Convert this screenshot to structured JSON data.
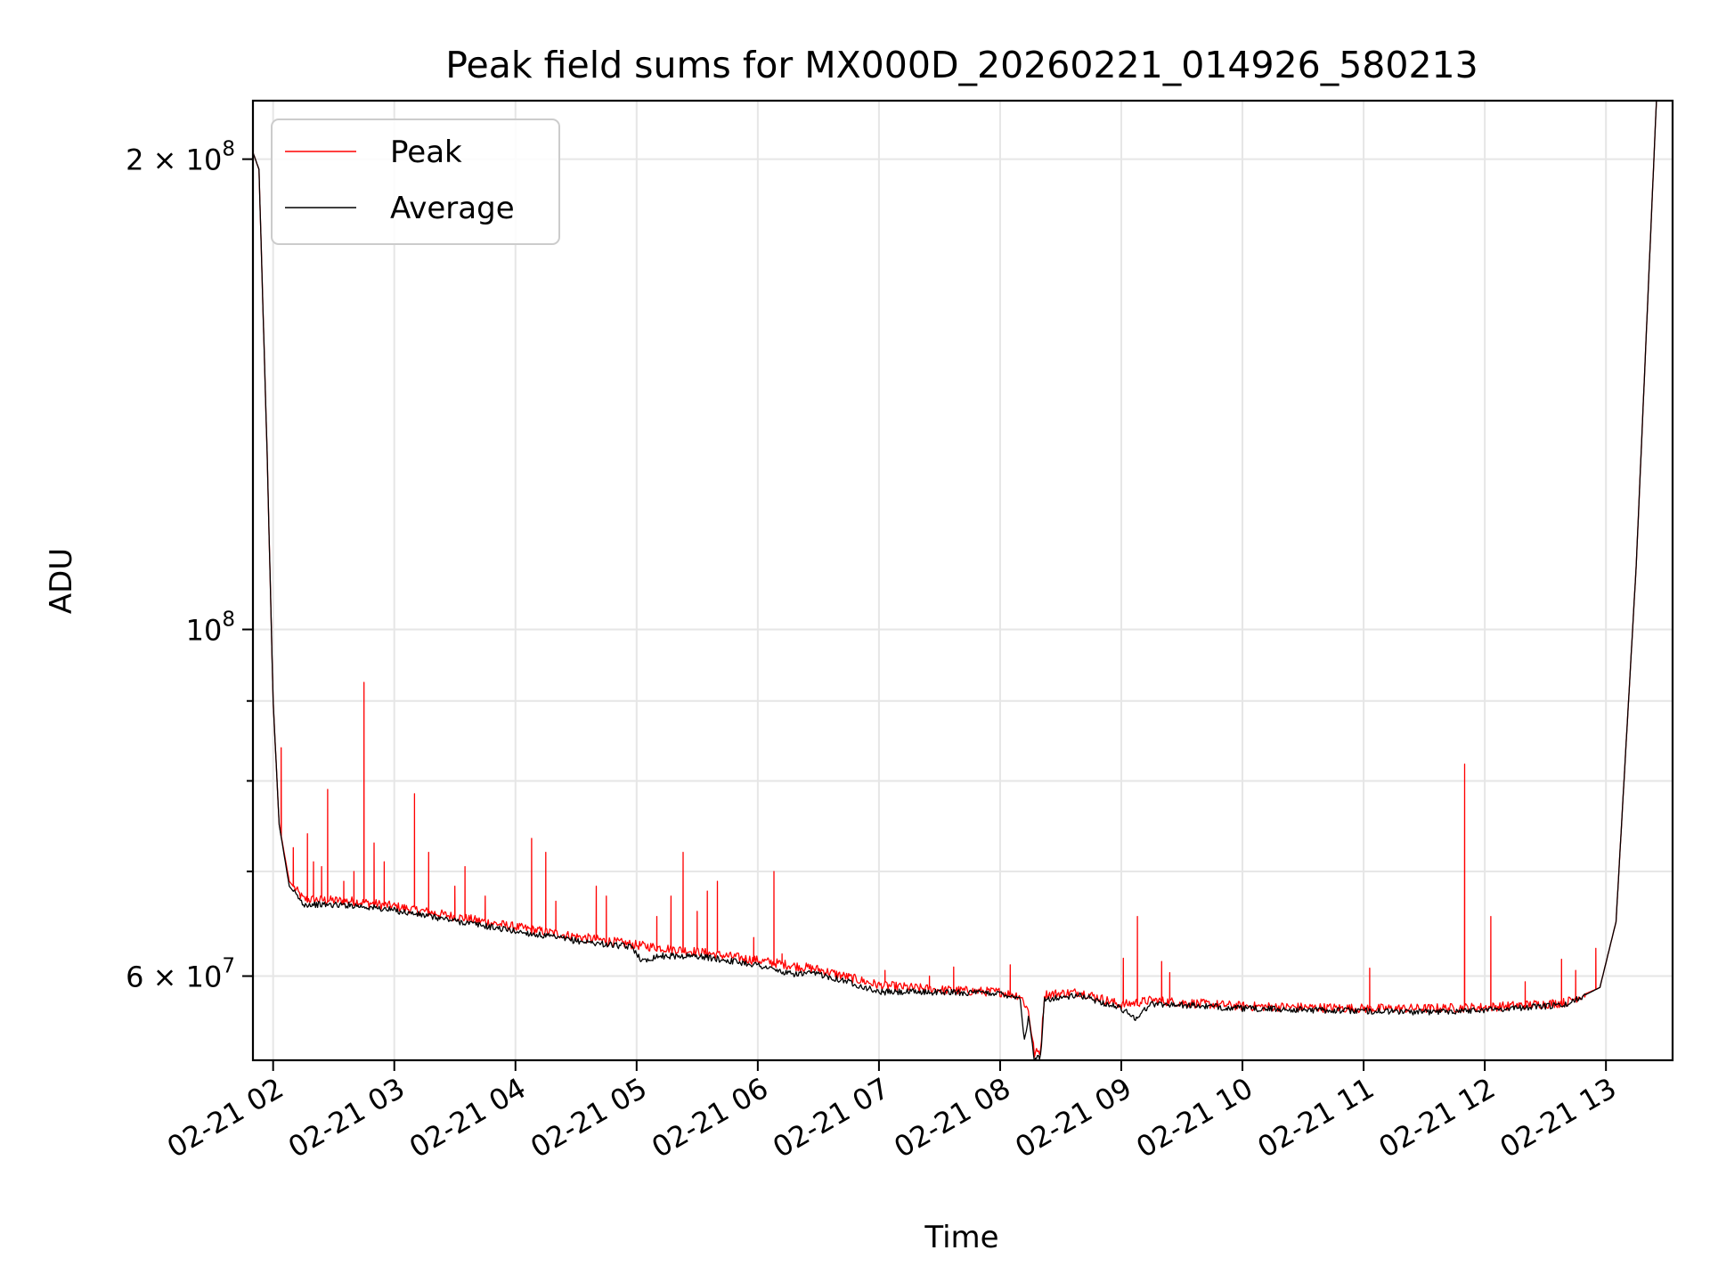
{
  "chart_data": {
    "type": "line",
    "title": "Peak field sums for MX000D_20260221_014926_580213",
    "xlabel": "Time",
    "ylabel": "ADU",
    "y_scale": "log",
    "ylim": [
      53000000,
      218000000
    ],
    "xlim": [
      "02-21 01:50",
      "02-21 13:33"
    ],
    "grid": true,
    "legend_position": "upper-left",
    "x_ticks": [
      {
        "time": "02-21 02:00",
        "label": "02-21 02"
      },
      {
        "time": "02-21 03:00",
        "label": "02-21 03"
      },
      {
        "time": "02-21 04:00",
        "label": "02-21 04"
      },
      {
        "time": "02-21 05:00",
        "label": "02-21 05"
      },
      {
        "time": "02-21 06:00",
        "label": "02-21 06"
      },
      {
        "time": "02-21 07:00",
        "label": "02-21 07"
      },
      {
        "time": "02-21 08:00",
        "label": "02-21 08"
      },
      {
        "time": "02-21 09:00",
        "label": "02-21 09"
      },
      {
        "time": "02-21 10:00",
        "label": "02-21 10"
      },
      {
        "time": "02-21 11:00",
        "label": "02-21 11"
      },
      {
        "time": "02-21 12:00",
        "label": "02-21 12"
      },
      {
        "time": "02-21 13:00",
        "label": "02-21 13"
      }
    ],
    "y_major_ticks": [
      {
        "value": 60000000,
        "base": "6 × 10",
        "exp": "7"
      },
      {
        "value": 100000000,
        "base": "10",
        "exp": "8"
      },
      {
        "value": 200000000,
        "base": "2 × 10",
        "exp": "8"
      }
    ],
    "y_minor_ticks": [
      70000000,
      80000000,
      90000000
    ],
    "series": [
      {
        "name": "Peak",
        "color": "#ff0000",
        "baseline": [
          [
            "02-21 01:50",
            202000000
          ],
          [
            "02-21 01:53",
            197000000
          ],
          [
            "02-21 01:57",
            130000000
          ],
          [
            "02-21 02:00",
            90000000
          ],
          [
            "02-21 02:03",
            75000000
          ],
          [
            "02-21 02:08",
            69000000
          ],
          [
            "02-21 02:15",
            67200000
          ],
          [
            "02-21 02:40",
            67000000
          ],
          [
            "02-21 03:00",
            66500000
          ],
          [
            "02-21 03:30",
            65500000
          ],
          [
            "02-21 04:00",
            64500000
          ],
          [
            "02-21 04:30",
            63600000
          ],
          [
            "02-21 05:00",
            62800000
          ],
          [
            "02-21 05:30",
            62200000
          ],
          [
            "02-21 06:00",
            61400000
          ],
          [
            "02-21 06:30",
            60600000
          ],
          [
            "02-21 07:00",
            59200000
          ],
          [
            "02-21 07:30",
            58800000
          ],
          [
            "02-21 08:00",
            58600000
          ],
          [
            "02-21 08:10",
            58300000
          ],
          [
            "02-21 08:14",
            57000000
          ],
          [
            "02-21 08:17",
            53500000
          ],
          [
            "02-21 08:20",
            53800000
          ],
          [
            "02-21 08:22",
            58400000
          ],
          [
            "02-21 08:40",
            58600000
          ],
          [
            "02-21 09:00",
            57500000
          ],
          [
            "02-21 09:15",
            57900000
          ],
          [
            "02-21 09:30",
            57700000
          ],
          [
            "02-21 10:00",
            57400000
          ],
          [
            "02-21 10:30",
            57300000
          ],
          [
            "02-21 11:00",
            57200000
          ],
          [
            "02-21 11:30",
            57200000
          ],
          [
            "02-21 12:00",
            57300000
          ],
          [
            "02-21 12:40",
            57700000
          ],
          [
            "02-21 12:57",
            59000000
          ],
          [
            "02-21 13:05",
            65000000
          ],
          [
            "02-21 13:15",
            110000000
          ],
          [
            "02-21 13:25",
            218000000
          ]
        ],
        "spikes": [
          [
            "02-21 02:04",
            84000000
          ],
          [
            "02-21 02:10",
            72500000
          ],
          [
            "02-21 02:17",
            74000000
          ],
          [
            "02-21 02:20",
            71000000
          ],
          [
            "02-21 02:24",
            70500000
          ],
          [
            "02-21 02:27",
            79000000
          ],
          [
            "02-21 02:35",
            69000000
          ],
          [
            "02-21 02:40",
            70000000
          ],
          [
            "02-21 02:45",
            92500000
          ],
          [
            "02-21 02:50",
            73000000
          ],
          [
            "02-21 02:55",
            71000000
          ],
          [
            "02-21 03:10",
            78500000
          ],
          [
            "02-21 03:17",
            72000000
          ],
          [
            "02-21 03:30",
            68500000
          ],
          [
            "02-21 03:35",
            70500000
          ],
          [
            "02-21 03:45",
            67500000
          ],
          [
            "02-21 04:08",
            73500000
          ],
          [
            "02-21 04:15",
            72000000
          ],
          [
            "02-21 04:20",
            67000000
          ],
          [
            "02-21 04:40",
            68500000
          ],
          [
            "02-21 04:45",
            67500000
          ],
          [
            "02-21 05:10",
            65500000
          ],
          [
            "02-21 05:17",
            67500000
          ],
          [
            "02-21 05:23",
            72000000
          ],
          [
            "02-21 05:30",
            66000000
          ],
          [
            "02-21 05:35",
            68000000
          ],
          [
            "02-21 05:40",
            69000000
          ],
          [
            "02-21 05:58",
            63500000
          ],
          [
            "02-21 06:08",
            70000000
          ],
          [
            "02-21 06:12",
            62000000
          ],
          [
            "02-21 07:03",
            60500000
          ],
          [
            "02-21 07:25",
            60000000
          ],
          [
            "02-21 07:37",
            60800000
          ],
          [
            "02-21 08:05",
            61000000
          ],
          [
            "02-21 09:01",
            61600000
          ],
          [
            "02-21 09:08",
            65500000
          ],
          [
            "02-21 09:20",
            61300000
          ],
          [
            "02-21 09:24",
            60300000
          ],
          [
            "02-21 11:03",
            60700000
          ],
          [
            "02-21 11:50",
            82000000
          ],
          [
            "02-21 12:03",
            65500000
          ],
          [
            "02-21 12:20",
            59500000
          ],
          [
            "02-21 12:38",
            61500000
          ],
          [
            "02-21 12:45",
            60500000
          ],
          [
            "02-21 12:55",
            62500000
          ]
        ]
      },
      {
        "name": "Average",
        "color": "#000000",
        "baseline": [
          [
            "02-21 01:50",
            202000000
          ],
          [
            "02-21 01:53",
            197000000
          ],
          [
            "02-21 01:57",
            130000000
          ],
          [
            "02-21 02:00",
            90000000
          ],
          [
            "02-21 02:03",
            75000000
          ],
          [
            "02-21 02:08",
            68500000
          ],
          [
            "02-21 02:15",
            66700000
          ],
          [
            "02-21 02:40",
            66600000
          ],
          [
            "02-21 03:00",
            66100000
          ],
          [
            "02-21 03:30",
            65100000
          ],
          [
            "02-21 04:00",
            64100000
          ],
          [
            "02-21 04:30",
            63200000
          ],
          [
            "02-21 04:58",
            62600000
          ],
          [
            "02-21 05:03",
            61300000
          ],
          [
            "02-21 05:10",
            61800000
          ],
          [
            "02-21 05:30",
            61800000
          ],
          [
            "02-21 06:00",
            61000000
          ],
          [
            "02-21 06:15",
            60200000
          ],
          [
            "02-21 06:30",
            60200000
          ],
          [
            "02-21 06:45",
            59500000
          ],
          [
            "02-21 07:00",
            58600000
          ],
          [
            "02-21 07:30",
            58600000
          ],
          [
            "02-21 08:00",
            58500000
          ],
          [
            "02-21 08:10",
            58100000
          ],
          [
            "02-21 08:12",
            54500000
          ],
          [
            "02-21 08:14",
            56500000
          ],
          [
            "02-21 08:17",
            53000000
          ],
          [
            "02-21 08:20",
            53300000
          ],
          [
            "02-21 08:22",
            58000000
          ],
          [
            "02-21 08:40",
            58300000
          ],
          [
            "02-21 09:00",
            57200000
          ],
          [
            "02-21 09:07",
            56400000
          ],
          [
            "02-21 09:15",
            57600000
          ],
          [
            "02-21 09:30",
            57500000
          ],
          [
            "02-21 10:00",
            57200000
          ],
          [
            "02-21 10:30",
            57100000
          ],
          [
            "02-21 11:00",
            57000000
          ],
          [
            "02-21 11:30",
            56900000
          ],
          [
            "02-21 12:00",
            57100000
          ],
          [
            "02-21 12:40",
            57500000
          ],
          [
            "02-21 12:57",
            59000000
          ],
          [
            "02-21 13:05",
            65000000
          ],
          [
            "02-21 13:15",
            110000000
          ],
          [
            "02-21 13:25",
            218000000
          ]
        ],
        "spikes": []
      }
    ]
  }
}
